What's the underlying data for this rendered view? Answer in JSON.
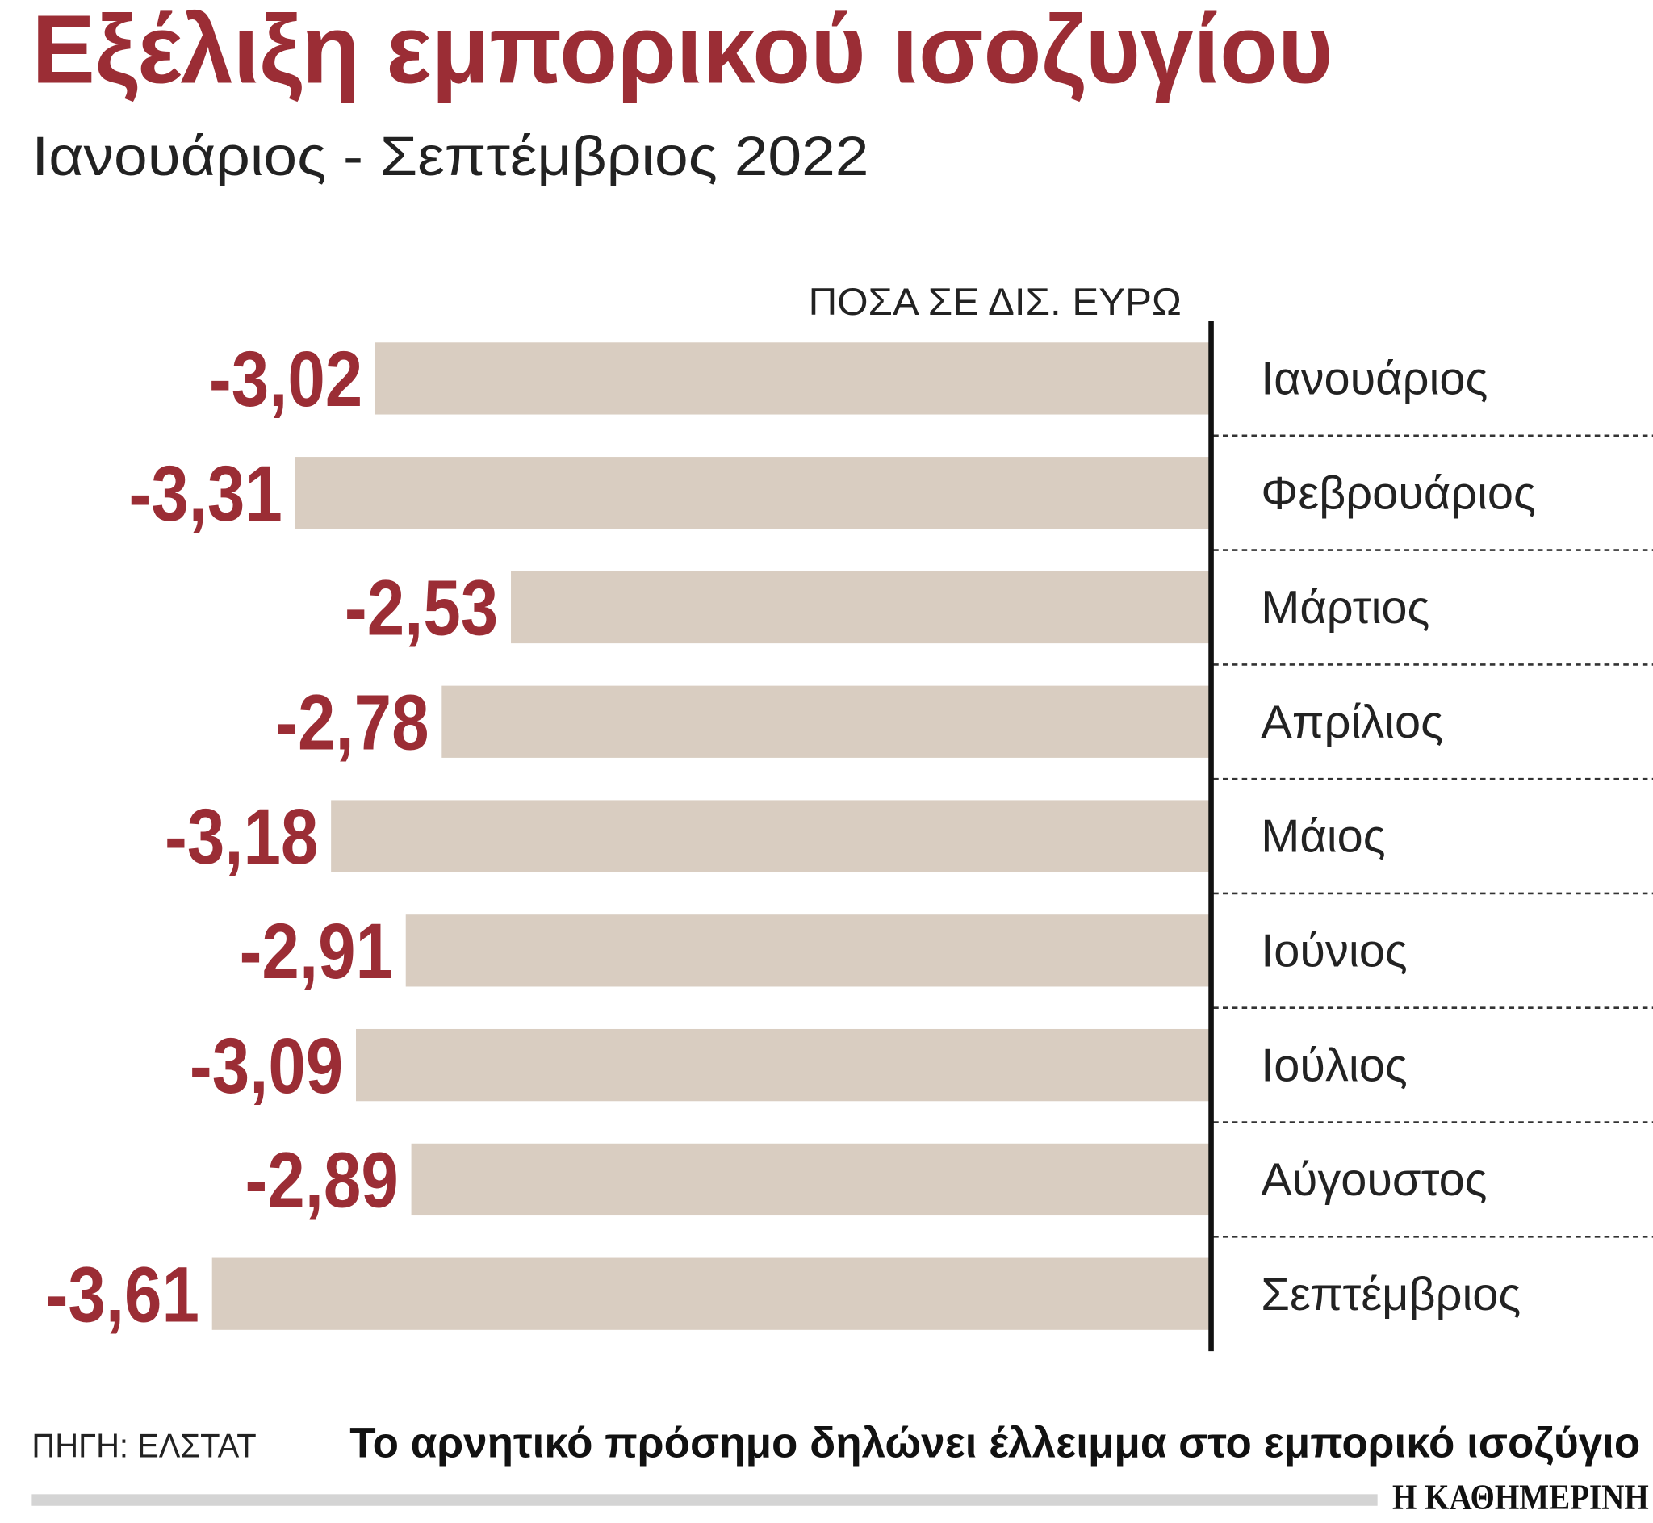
{
  "chart_data": {
    "type": "barh",
    "title": "Εξέλιξη εμπορικού ισοζυγίου",
    "subtitle": "Ιανουάριος - Σεπτέμβριος 2022",
    "unit_label": "ΠΟΣΑ ΣΕ ΔΙΣ. ΕΥΡΩ",
    "categories": [
      "Ιανουάριος",
      "Φεβρουάριος",
      "Μάρτιος",
      "Απρίλιος",
      "Μάιος",
      "Ιούνιος",
      "Ιούλιος",
      "Αύγουστος",
      "Σεπτέμβριος"
    ],
    "values": [
      -3.02,
      -3.31,
      -2.53,
      -2.78,
      -3.18,
      -2.91,
      -3.09,
      -2.89,
      -3.61
    ],
    "value_labels": [
      "-3,02",
      "-3,31",
      "-2,53",
      "-2,78",
      "-3,18",
      "-2,91",
      "-3,09",
      "-2,89",
      "-3,61"
    ],
    "color": "#d9cdc1",
    "label_color": "#9b2d35",
    "xlim": [
      -4.2,
      0
    ],
    "source": "ΠΗΓΗ: ΕΛΣΤΑΤ",
    "note": "Το αρνητικό πρόσημο δηλώνει έλλειμμα στο εμπορικό ισοζύγιο",
    "publisher": "Η ΚΑΘΗΜΕΡΙΝΗ"
  }
}
